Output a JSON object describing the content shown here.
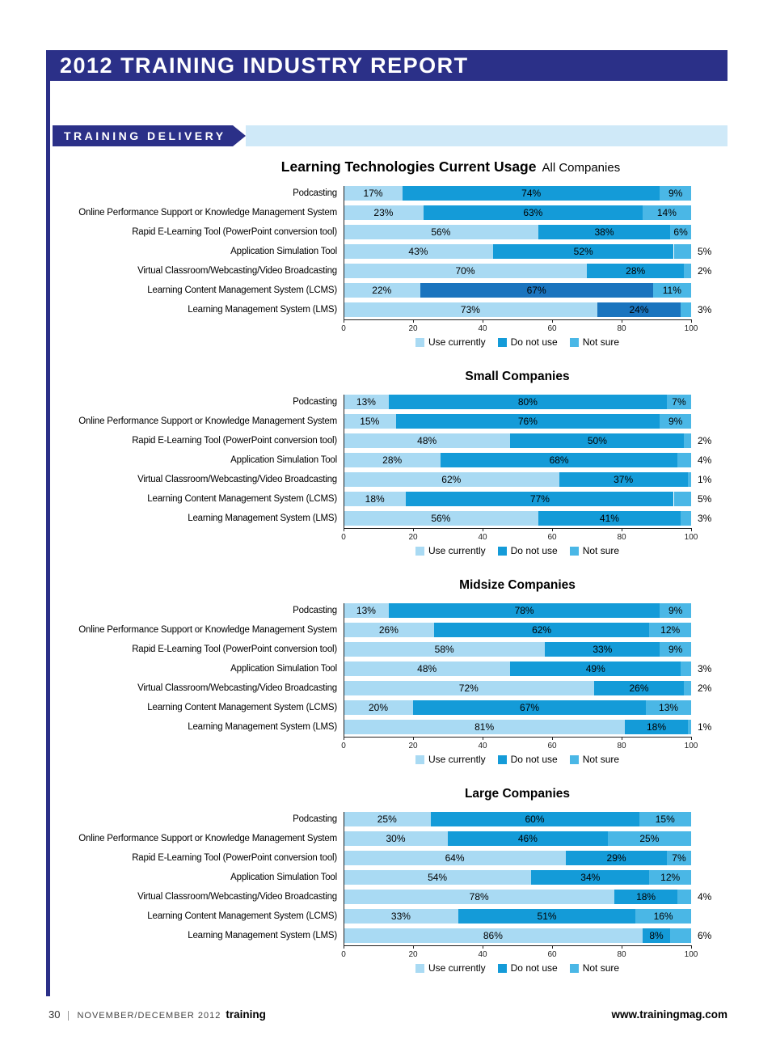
{
  "header": {
    "title": "2012 TRAINING INDUSTRY REPORT"
  },
  "section": {
    "label": "TRAINING DELIVERY"
  },
  "colors": {
    "navy": "#2b3088",
    "band_light_blue": "#cfe9f8",
    "use_currently": "#a9daf3",
    "do_not_use": "#149bd8",
    "do_not_use_dark": "#1a74be",
    "not_sure": "#4ab7e6",
    "axis": "#222222"
  },
  "legend": [
    "Use currently",
    "Do not use",
    "Not sure"
  ],
  "axis": {
    "ticks": [
      0,
      20,
      40,
      60,
      80,
      100
    ],
    "min": 0,
    "max": 100
  },
  "chart_data": [
    {
      "type": "bar",
      "stacked": true,
      "orientation": "horizontal",
      "title": "Learning Technologies Current Usage",
      "subtitle": "All Companies",
      "xlim": [
        0,
        100
      ],
      "legend_position": "bottom",
      "categories": [
        "Podcasting",
        "Online Performance Support or Knowledge Management System",
        "Rapid E-Learning Tool (PowerPoint conversion tool)",
        "Application Simulation Tool",
        "Virtual Classroom/Webcasting/Video Broadcasting",
        "Learning Content Management System (LCMS)",
        "Learning Management System (LMS)"
      ],
      "series": [
        {
          "name": "Use currently",
          "values": [
            17,
            23,
            56,
            43,
            70,
            22,
            73
          ]
        },
        {
          "name": "Do not use",
          "values": [
            74,
            63,
            38,
            52,
            28,
            67,
            24
          ]
        },
        {
          "name": "Not sure",
          "values": [
            9,
            14,
            6,
            5,
            2,
            11,
            3
          ]
        }
      ],
      "not_sure_label_outside": [
        false,
        false,
        false,
        true,
        true,
        false,
        true
      ],
      "dark_do_not_use_rows": [
        5,
        6
      ]
    },
    {
      "type": "bar",
      "stacked": true,
      "orientation": "horizontal",
      "subtitle": "Small Companies",
      "xlim": [
        0,
        100
      ],
      "legend_position": "bottom",
      "categories": [
        "Podcasting",
        "Online Performance Support or Knowledge Management System",
        "Rapid E-Learning Tool (PowerPoint conversion tool)",
        "Application Simulation Tool",
        "Virtual Classroom/Webcasting/Video Broadcasting",
        "Learning Content Management System (LCMS)",
        "Learning Management System (LMS)"
      ],
      "series": [
        {
          "name": "Use currently",
          "values": [
            13,
            15,
            48,
            28,
            62,
            18,
            56
          ]
        },
        {
          "name": "Do not use",
          "values": [
            80,
            76,
            50,
            68,
            37,
            77,
            41
          ]
        },
        {
          "name": "Not sure",
          "values": [
            7,
            9,
            2,
            4,
            1,
            5,
            3
          ]
        }
      ],
      "not_sure_label_outside": [
        false,
        false,
        true,
        true,
        true,
        true,
        true
      ],
      "dark_do_not_use_rows": []
    },
    {
      "type": "bar",
      "stacked": true,
      "orientation": "horizontal",
      "subtitle": "Midsize Companies",
      "xlim": [
        0,
        100
      ],
      "legend_position": "bottom",
      "categories": [
        "Podcasting",
        "Online Performance Support or Knowledge Management System",
        "Rapid E-Learning Tool (PowerPoint conversion tool)",
        "Application Simulation Tool",
        "Virtual Classroom/Webcasting/Video Broadcasting",
        "Learning Content Management System (LCMS)",
        "Learning Management System (LMS)"
      ],
      "series": [
        {
          "name": "Use currently",
          "values": [
            13,
            26,
            58,
            48,
            72,
            20,
            81
          ]
        },
        {
          "name": "Do not use",
          "values": [
            78,
            62,
            33,
            49,
            26,
            67,
            18
          ]
        },
        {
          "name": "Not sure",
          "values": [
            9,
            12,
            9,
            3,
            2,
            13,
            1
          ]
        }
      ],
      "not_sure_label_outside": [
        false,
        false,
        false,
        true,
        true,
        false,
        true
      ],
      "dark_do_not_use_rows": []
    },
    {
      "type": "bar",
      "stacked": true,
      "orientation": "horizontal",
      "subtitle": "Large Companies",
      "xlim": [
        0,
        100
      ],
      "legend_position": "bottom",
      "categories": [
        "Podcasting",
        "Online Performance Support or Knowledge Management System",
        "Rapid E-Learning Tool (PowerPoint conversion tool)",
        "Application Simulation Tool",
        "Virtual Classroom/Webcasting/Video Broadcasting",
        "Learning Content Management System (LCMS)",
        "Learning Management System (LMS)"
      ],
      "series": [
        {
          "name": "Use currently",
          "values": [
            25,
            30,
            64,
            54,
            78,
            33,
            86
          ]
        },
        {
          "name": "Do not use",
          "values": [
            60,
            46,
            29,
            34,
            18,
            51,
            8
          ]
        },
        {
          "name": "Not sure",
          "values": [
            15,
            25,
            7,
            12,
            4,
            16,
            6
          ]
        }
      ],
      "not_sure_label_outside": [
        false,
        false,
        false,
        false,
        true,
        false,
        true
      ],
      "dark_do_not_use_rows": []
    }
  ],
  "footer": {
    "page_number": "30",
    "issue": "NOVEMBER/DECEMBER 2012",
    "brand": "training",
    "url": "www.trainingmag.com"
  }
}
